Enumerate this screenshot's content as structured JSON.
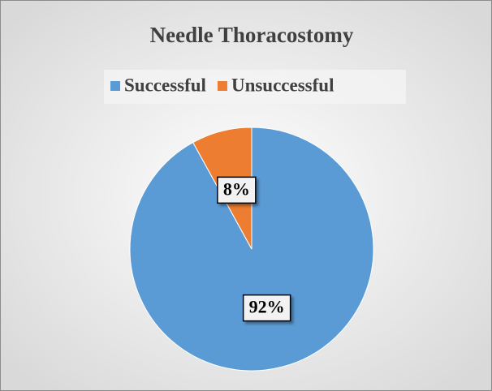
{
  "chart_data": {
    "type": "pie",
    "title": "Needle Thoracostomy",
    "categories": [
      "Successful",
      "Unsuccessful"
    ],
    "values": [
      92,
      8
    ],
    "value_labels": [
      "92%",
      "8%"
    ],
    "colors": [
      "#5b9bd5",
      "#ed7d31"
    ],
    "legend": "top"
  }
}
